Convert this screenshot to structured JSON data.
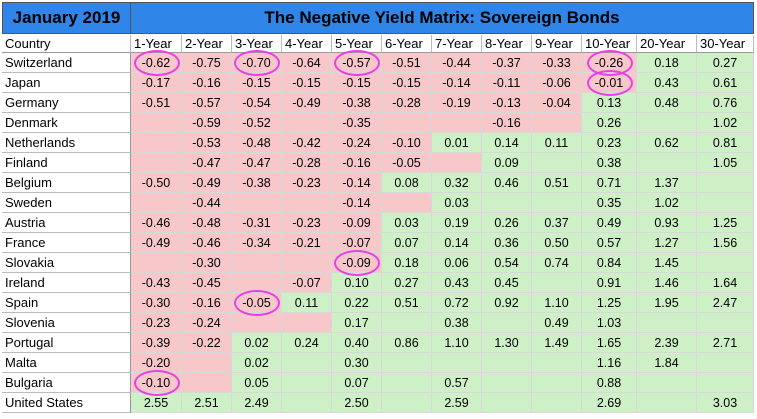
{
  "colors": {
    "header_bg": "#2f86e8",
    "negative": "#f7c7c9",
    "positive": "#cdf0c6",
    "highlight": "#e83fe6"
  },
  "header": {
    "left_title": "January 2019",
    "main_title": "The Negative Yield Matrix: Sovereign Bonds"
  },
  "chart_data": {
    "type": "table",
    "row_header": "Country",
    "columns": [
      "1-Year",
      "2-Year",
      "3-Year",
      "4-Year",
      "5-Year",
      "6-Year",
      "7-Year",
      "8-Year",
      "9-Year",
      "10-Year",
      "20-Year",
      "30-Year"
    ],
    "rows": [
      {
        "country": "Switzerland",
        "values": [
          "-0.62",
          "-0.75",
          "-0.70",
          "-0.64",
          "-0.57",
          "-0.51",
          "-0.44",
          "-0.37",
          "-0.33",
          "-0.26",
          "0.18",
          "0.27"
        ]
      },
      {
        "country": "Japan",
        "values": [
          "-0.17",
          "-0.16",
          "-0.15",
          "-0.15",
          "-0.15",
          "-0.15",
          "-0.14",
          "-0.11",
          "-0.06",
          "-0.01",
          "0.43",
          "0.61"
        ]
      },
      {
        "country": "Germany",
        "values": [
          "-0.51",
          "-0.57",
          "-0.54",
          "-0.49",
          "-0.38",
          "-0.28",
          "-0.19",
          "-0.13",
          "-0.04",
          "0.13",
          "0.48",
          "0.76"
        ]
      },
      {
        "country": "Denmark",
        "values": [
          "",
          "-0.59",
          "-0.52",
          "",
          "-0.35",
          "",
          "",
          "-0.16",
          "",
          "0.26",
          "",
          "1.02"
        ]
      },
      {
        "country": "Netherlands",
        "values": [
          "",
          "-0.53",
          "-0.48",
          "-0.42",
          "-0.24",
          "-0.10",
          "0.01",
          "0.14",
          "0.11",
          "0.23",
          "0.62",
          "0.81"
        ]
      },
      {
        "country": "Finland",
        "values": [
          "",
          "-0.47",
          "-0.47",
          "-0.28",
          "-0.16",
          "-0.05",
          "",
          "0.09",
          "",
          "0.38",
          "",
          "1.05"
        ]
      },
      {
        "country": "Belgium",
        "values": [
          "-0.50",
          "-0.49",
          "-0.38",
          "-0.23",
          "-0.14",
          "0.08",
          "0.32",
          "0.46",
          "0.51",
          "0.71",
          "1.37",
          ""
        ]
      },
      {
        "country": "Sweden",
        "values": [
          "",
          "-0.44",
          "",
          "",
          "-0.14",
          "",
          "0.03",
          "",
          "",
          "0.35",
          "1.02",
          ""
        ]
      },
      {
        "country": "Austria",
        "values": [
          "-0.46",
          "-0.48",
          "-0.31",
          "-0.23",
          "-0.09",
          "0.03",
          "0.19",
          "0.26",
          "0.37",
          "0.49",
          "0.93",
          "1.25"
        ]
      },
      {
        "country": "France",
        "values": [
          "-0.49",
          "-0.46",
          "-0.34",
          "-0.21",
          "-0.07",
          "0.07",
          "0.14",
          "0.36",
          "0.50",
          "0.57",
          "1.27",
          "1.56"
        ]
      },
      {
        "country": "Slovakia",
        "values": [
          "",
          "-0.30",
          "",
          "",
          "-0.09",
          "0.18",
          "0.06",
          "0.54",
          "0.74",
          "0.84",
          "1.45",
          ""
        ]
      },
      {
        "country": "Ireland",
        "values": [
          "-0.43",
          "-0.45",
          "",
          "-0.07",
          "0.10",
          "0.27",
          "0.43",
          "0.45",
          "",
          "0.91",
          "1.46",
          "1.64"
        ]
      },
      {
        "country": "Spain",
        "values": [
          "-0.30",
          "-0.16",
          "-0.05",
          "0.11",
          "0.22",
          "0.51",
          "0.72",
          "0.92",
          "1.10",
          "1.25",
          "1.95",
          "2.47"
        ]
      },
      {
        "country": "Slovenia",
        "values": [
          "-0.23",
          "-0.24",
          "",
          "",
          "0.17",
          "",
          "0.38",
          "",
          "0.49",
          "1.03",
          "",
          ""
        ]
      },
      {
        "country": "Portugal",
        "values": [
          "-0.39",
          "-0.22",
          "0.02",
          "0.24",
          "0.40",
          "0.86",
          "1.10",
          "1.30",
          "1.49",
          "1.65",
          "2.39",
          "2.71"
        ]
      },
      {
        "country": "Malta",
        "values": [
          "-0.20",
          "",
          "0.02",
          "",
          "0.30",
          "",
          "",
          "",
          "",
          "1.16",
          "1.84",
          ""
        ]
      },
      {
        "country": "Bulgaria",
        "values": [
          "-0.10",
          "",
          "0.05",
          "",
          "0.07",
          "",
          "0.57",
          "",
          "",
          "0.88",
          "",
          ""
        ]
      },
      {
        "country": "United States",
        "values": [
          "2.55",
          "2.51",
          "2.49",
          "",
          "2.50",
          "",
          "2.59",
          "",
          "",
          "2.69",
          "",
          "3.03"
        ]
      }
    ],
    "highlighted": [
      {
        "row": "Switzerland",
        "col": "1-Year"
      },
      {
        "row": "Switzerland",
        "col": "3-Year"
      },
      {
        "row": "Switzerland",
        "col": "5-Year"
      },
      {
        "row": "Switzerland",
        "col": "10-Year"
      },
      {
        "row": "Japan",
        "col": "10-Year"
      },
      {
        "row": "Slovakia",
        "col": "5-Year"
      },
      {
        "row": "Spain",
        "col": "3-Year"
      },
      {
        "row": "Bulgaria",
        "col": "1-Year"
      }
    ]
  }
}
